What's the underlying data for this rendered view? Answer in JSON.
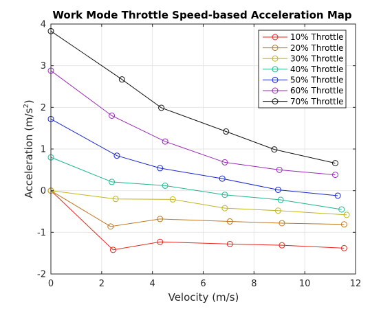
{
  "chart_data": {
    "type": "line",
    "title": "Work Mode Throttle Speed-based Acceleration Map",
    "xlabel": "Velocity (m/s)",
    "ylabel_main": "Acceleration (m/s",
    "ylabel_sup": "2",
    "ylabel_close": ")",
    "xlim": [
      0,
      12
    ],
    "ylim": [
      -2,
      4
    ],
    "xticks": [
      0,
      2,
      4,
      6,
      8,
      10,
      12
    ],
    "yticks": [
      -2,
      -1,
      0,
      1,
      2,
      3,
      4
    ],
    "xtick_labels": [
      "0",
      "2",
      "4",
      "6",
      "8",
      "10",
      "12"
    ],
    "ytick_labels": [
      "-2",
      "-1",
      "0",
      "1",
      "2",
      "3",
      "4"
    ],
    "grid": true,
    "legend_position": "top-right",
    "marker": "open-circle",
    "series": [
      {
        "name": "10% Throttle",
        "color": "#e8231b",
        "x": [
          0,
          2.45,
          4.3,
          7.05,
          9.1,
          11.55
        ],
        "y": [
          0,
          -1.42,
          -1.23,
          -1.28,
          -1.31,
          -1.38
        ]
      },
      {
        "name": "20% Throttle",
        "color": "#c0761f",
        "x": [
          0,
          2.35,
          4.3,
          7.05,
          9.1,
          11.55
        ],
        "y": [
          0,
          -0.86,
          -0.68,
          -0.74,
          -0.78,
          -0.81
        ]
      },
      {
        "name": "30% Throttle",
        "color": "#c2b41c",
        "x": [
          0,
          2.55,
          4.8,
          6.85,
          8.95,
          11.65
        ],
        "y": [
          0,
          -0.2,
          -0.21,
          -0.42,
          -0.48,
          -0.58
        ]
      },
      {
        "name": "40% Throttle",
        "color": "#1db58f",
        "x": [
          0,
          2.4,
          4.5,
          6.85,
          9.05,
          11.45
        ],
        "y": [
          0.8,
          0.21,
          0.12,
          -0.1,
          -0.22,
          -0.45
        ]
      },
      {
        "name": "50% Throttle",
        "color": "#1524cf",
        "x": [
          0,
          2.6,
          4.3,
          6.75,
          8.95,
          11.3
        ],
        "y": [
          1.72,
          0.84,
          0.54,
          0.29,
          0.02,
          -0.12
        ]
      },
      {
        "name": "60% Throttle",
        "color": "#9a27b8",
        "x": [
          0,
          2.4,
          4.5,
          6.85,
          9.0,
          11.2
        ],
        "y": [
          2.88,
          1.8,
          1.18,
          0.68,
          0.5,
          0.38
        ]
      },
      {
        "name": "70% Throttle",
        "color": "#111111",
        "x": [
          0,
          2.8,
          4.35,
          6.9,
          8.8,
          11.2
        ],
        "y": [
          3.83,
          2.67,
          1.99,
          1.42,
          0.99,
          0.66
        ]
      }
    ]
  }
}
